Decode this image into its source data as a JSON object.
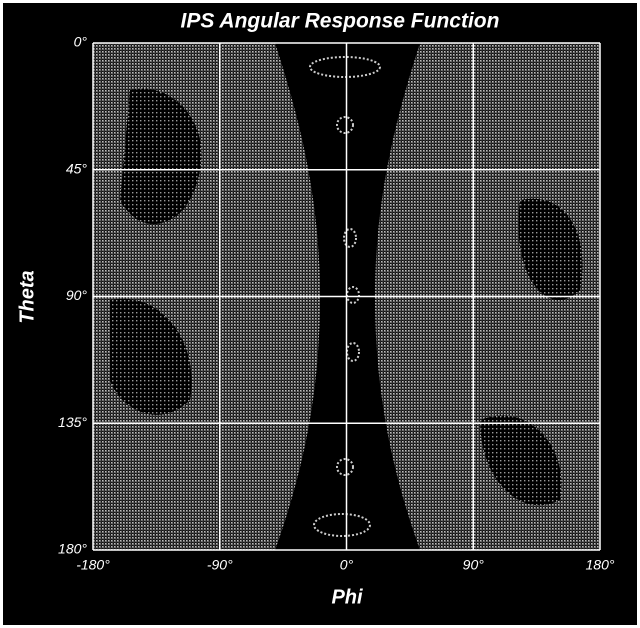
{
  "chart_data": {
    "type": "heatmap",
    "title": "IPS Angular Response Function",
    "x_label": "Phi",
    "y_label": "Theta",
    "xlim": [
      -180,
      180
    ],
    "xticks": [
      {
        "value": -180,
        "label": "-180°"
      },
      {
        "value": -90,
        "label": "-90°"
      },
      {
        "value": 0,
        "label": "0°"
      },
      {
        "value": 90,
        "label": "90°"
      },
      {
        "value": 180,
        "label": "180°"
      }
    ],
    "ylim": [
      0,
      180
    ],
    "y_inverted": true,
    "yticks": [
      {
        "value": 0,
        "label": "0°"
      },
      {
        "value": 45,
        "label": "45°"
      },
      {
        "value": 90,
        "label": "90°"
      },
      {
        "value": 135,
        "label": "135°"
      },
      {
        "value": 180,
        "label": "180°"
      }
    ],
    "grid": true,
    "grid_color": "#ffffff"
  }
}
